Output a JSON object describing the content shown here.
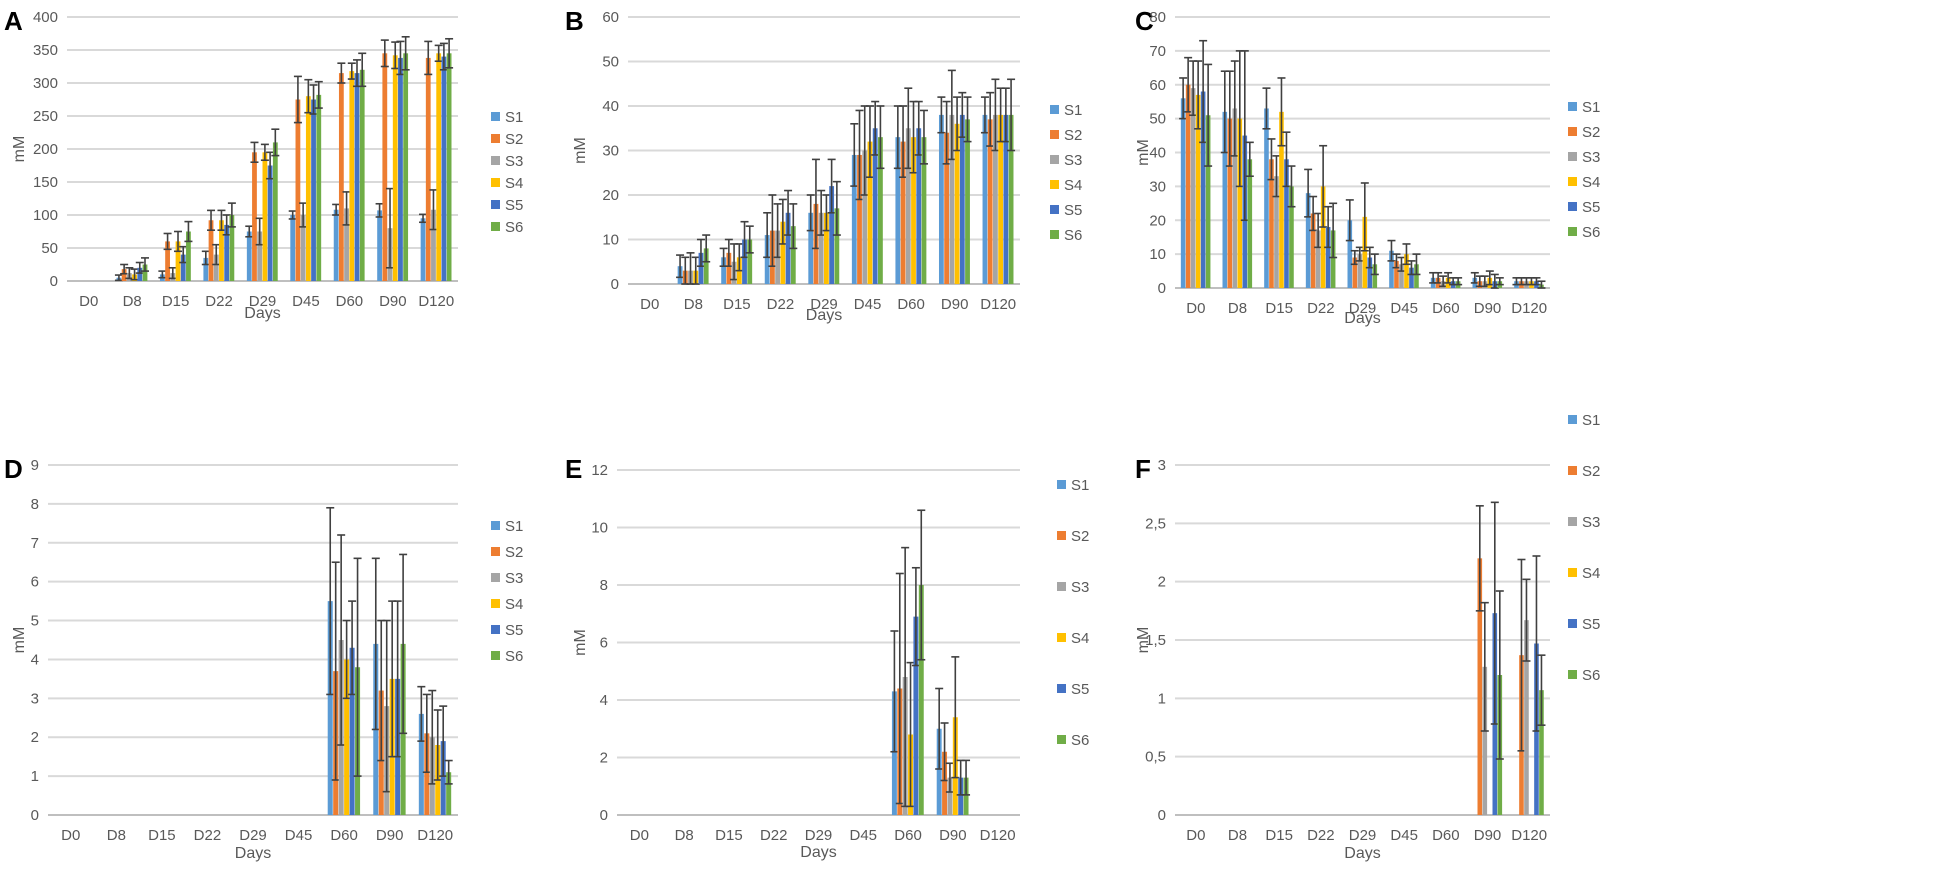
{
  "series_names": [
    "S1",
    "S2",
    "S3",
    "S4",
    "S5",
    "S6"
  ],
  "colors": {
    "S1": "#5b9bd5",
    "S2": "#ed7d31",
    "S3": "#a5a5a5",
    "S4": "#ffc000",
    "S5": "#4472c4",
    "S6": "#70ad47",
    "grid": "#d9d9d9",
    "axis": "#bfbfbf",
    "errorbar": "#404040"
  },
  "chart_data": [
    {
      "panel": "A",
      "type": "bar",
      "xlabel": "Days",
      "ylabel": "mM",
      "ylim": [
        0,
        400
      ],
      "yticks": [
        "0",
        "50",
        "100",
        "150",
        "200",
        "250",
        "300",
        "350",
        "400"
      ],
      "categories": [
        "D0",
        "D8",
        "D15",
        "D22",
        "D29",
        "D45",
        "D60",
        "D90",
        "D120"
      ],
      "series": [
        {
          "name": "S1",
          "values": [
            0,
            5,
            10,
            35,
            75,
            100,
            108,
            107,
            95
          ],
          "errors": [
            0,
            4,
            5,
            10,
            8,
            6,
            8,
            10,
            6
          ]
        },
        {
          "name": "S2",
          "values": [
            0,
            18,
            60,
            92,
            195,
            275,
            315,
            345,
            338
          ],
          "errors": [
            0,
            7,
            12,
            15,
            15,
            35,
            15,
            20,
            25
          ]
        },
        {
          "name": "S3",
          "values": [
            0,
            12,
            12,
            40,
            75,
            100,
            110,
            80,
            108
          ],
          "errors": [
            0,
            8,
            8,
            15,
            20,
            18,
            25,
            60,
            30
          ]
        },
        {
          "name": "S4",
          "values": [
            0,
            10,
            60,
            92,
            195,
            280,
            318,
            342,
            345
          ],
          "errors": [
            0,
            8,
            15,
            15,
            12,
            25,
            12,
            20,
            12
          ]
        },
        {
          "name": "S5",
          "values": [
            0,
            20,
            40,
            85,
            175,
            275,
            315,
            338,
            340
          ],
          "errors": [
            0,
            8,
            12,
            15,
            20,
            22,
            20,
            25,
            20
          ]
        },
        {
          "name": "S6",
          "values": [
            0,
            25,
            75,
            100,
            210,
            282,
            320,
            345,
            345
          ],
          "errors": [
            0,
            10,
            15,
            18,
            20,
            20,
            25,
            25,
            22
          ]
        }
      ]
    },
    {
      "panel": "B",
      "type": "bar",
      "xlabel": "Days",
      "ylabel": "mM",
      "ylim": [
        0,
        60
      ],
      "yticks": [
        "0",
        "10",
        "20",
        "30",
        "40",
        "50",
        "60"
      ],
      "categories": [
        "D0",
        "D8",
        "D15",
        "D22",
        "D29",
        "D45",
        "D60",
        "D90",
        "D120"
      ],
      "series": [
        {
          "name": "S1",
          "values": [
            0,
            4,
            6,
            11,
            16,
            29,
            33,
            38,
            38
          ],
          "errors": [
            0,
            2.5,
            2,
            5,
            4,
            7,
            7,
            4,
            4
          ]
        },
        {
          "name": "S2",
          "values": [
            0,
            3,
            7,
            12,
            18,
            29,
            32,
            34,
            37
          ],
          "errors": [
            0,
            3,
            3,
            8,
            10,
            10,
            8,
            7,
            6
          ]
        },
        {
          "name": "S3",
          "values": [
            0,
            3,
            5,
            12,
            16,
            30,
            35,
            38,
            38
          ],
          "errors": [
            0,
            4,
            4,
            6,
            5,
            10,
            9,
            10,
            8
          ]
        },
        {
          "name": "S4",
          "values": [
            0,
            3,
            6,
            14,
            16,
            32,
            33,
            36,
            38
          ],
          "errors": [
            0,
            3,
            3,
            5,
            4,
            8,
            8,
            6,
            6
          ]
        },
        {
          "name": "S5",
          "values": [
            0,
            7,
            10,
            16,
            22,
            35,
            35,
            38,
            38
          ],
          "errors": [
            0,
            3,
            4,
            5,
            6,
            6,
            6,
            5,
            6
          ]
        },
        {
          "name": "S6",
          "values": [
            0,
            8,
            10,
            13,
            17,
            33,
            33,
            37,
            38
          ],
          "errors": [
            0,
            3,
            3,
            5,
            6,
            7,
            6,
            5,
            8
          ]
        }
      ]
    },
    {
      "panel": "C",
      "type": "bar",
      "xlabel": "Days",
      "ylabel": "mM",
      "ylim": [
        0,
        80
      ],
      "yticks": [
        "0",
        "10",
        "20",
        "30",
        "40",
        "50",
        "60",
        "70",
        "80"
      ],
      "categories": [
        "D0",
        "D8",
        "D15",
        "D22",
        "D29",
        "D45",
        "D60",
        "D90",
        "D120"
      ],
      "series": [
        {
          "name": "S1",
          "values": [
            56,
            52,
            53,
            28,
            20,
            11,
            3,
            3,
            2
          ],
          "errors": [
            6,
            12,
            6,
            7,
            6,
            3,
            1.5,
            1.5,
            1
          ]
        },
        {
          "name": "S2",
          "values": [
            60,
            50,
            38,
            22,
            9,
            8,
            3,
            2,
            2
          ],
          "errors": [
            8,
            14,
            6,
            5,
            2,
            2,
            1.5,
            1.5,
            1
          ]
        },
        {
          "name": "S3",
          "values": [
            59,
            53,
            33,
            17,
            10,
            7,
            2,
            2,
            2
          ],
          "errors": [
            8,
            14,
            6,
            5,
            2,
            2,
            1.5,
            1.5,
            1
          ]
        },
        {
          "name": "S4",
          "values": [
            57,
            50,
            52,
            30,
            21,
            10,
            3,
            3,
            2
          ],
          "errors": [
            10,
            20,
            10,
            12,
            10,
            3,
            1.5,
            2,
            1
          ]
        },
        {
          "name": "S5",
          "values": [
            58,
            45,
            38,
            18,
            9,
            6,
            2,
            2,
            2
          ],
          "errors": [
            15,
            25,
            8,
            6,
            3,
            2,
            1,
            2,
            1
          ]
        },
        {
          "name": "S6",
          "values": [
            51,
            38,
            30,
            17,
            7,
            7,
            2,
            2,
            1
          ],
          "errors": [
            15,
            5,
            6,
            8,
            3,
            3,
            1,
            1,
            1
          ]
        }
      ]
    },
    {
      "panel": "D",
      "type": "bar",
      "xlabel": "Days",
      "ylabel": "mM",
      "ylim": [
        0,
        9
      ],
      "yticks": [
        "0",
        "1",
        "2",
        "3",
        "4",
        "5",
        "6",
        "7",
        "8",
        "9"
      ],
      "categories": [
        "D0",
        "D8",
        "D15",
        "D22",
        "D29",
        "D45",
        "D60",
        "D90",
        "D120"
      ],
      "series": [
        {
          "name": "S1",
          "values": [
            0,
            0,
            0,
            0,
            0,
            0,
            5.5,
            4.4,
            2.6
          ],
          "errors": [
            0,
            0,
            0,
            0,
            0,
            0,
            2.4,
            2.2,
            0.7
          ]
        },
        {
          "name": "S2",
          "values": [
            0,
            0,
            0,
            0,
            0,
            0,
            3.7,
            3.2,
            2.1
          ],
          "errors": [
            0,
            0,
            0,
            0,
            0,
            0,
            2.8,
            1.8,
            1.0
          ]
        },
        {
          "name": "S3",
          "values": [
            0,
            0,
            0,
            0,
            0,
            0,
            4.5,
            2.8,
            2.0
          ],
          "errors": [
            0,
            0,
            0,
            0,
            0,
            0,
            2.7,
            2.2,
            1.2
          ]
        },
        {
          "name": "S4",
          "values": [
            0,
            0,
            0,
            0,
            0,
            0,
            4.0,
            3.5,
            1.8
          ],
          "errors": [
            0,
            0,
            0,
            0,
            0,
            0,
            1.0,
            2.0,
            0.9
          ]
        },
        {
          "name": "S5",
          "values": [
            0,
            0,
            0,
            0,
            0,
            0,
            4.3,
            3.5,
            1.9
          ],
          "errors": [
            0,
            0,
            0,
            0,
            0,
            0,
            1.2,
            2.0,
            0.9
          ]
        },
        {
          "name": "S6",
          "values": [
            0,
            0,
            0,
            0,
            0,
            0,
            3.8,
            4.4,
            1.1
          ],
          "errors": [
            0,
            0,
            0,
            0,
            0,
            0,
            2.8,
            2.3,
            0.3
          ]
        }
      ]
    },
    {
      "panel": "E",
      "type": "bar",
      "xlabel": "Days",
      "ylabel": "mM",
      "ylim": [
        0,
        12
      ],
      "yticks": [
        "0",
        "2",
        "4",
        "6",
        "8",
        "10",
        "12"
      ],
      "categories": [
        "D0",
        "D8",
        "D15",
        "D22",
        "D29",
        "D45",
        "D60",
        "D90",
        "D120"
      ],
      "series": [
        {
          "name": "S1",
          "values": [
            0,
            0,
            0,
            0,
            0,
            0,
            4.3,
            3.0,
            0
          ],
          "errors": [
            0,
            0,
            0,
            0,
            0,
            0,
            2.1,
            1.4,
            0
          ]
        },
        {
          "name": "S2",
          "values": [
            0,
            0,
            0,
            0,
            0,
            0,
            4.4,
            2.2,
            0
          ],
          "errors": [
            0,
            0,
            0,
            0,
            0,
            0,
            4.0,
            1.0,
            0
          ]
        },
        {
          "name": "S3",
          "values": [
            0,
            0,
            0,
            0,
            0,
            0,
            4.8,
            1.3,
            0
          ],
          "errors": [
            0,
            0,
            0,
            0,
            0,
            0,
            4.5,
            0.5,
            0
          ]
        },
        {
          "name": "S4",
          "values": [
            0,
            0,
            0,
            0,
            0,
            0,
            2.8,
            3.4,
            0
          ],
          "errors": [
            0,
            0,
            0,
            0,
            0,
            0,
            2.5,
            2.1,
            0
          ]
        },
        {
          "name": "S5",
          "values": [
            0,
            0,
            0,
            0,
            0,
            0,
            6.9,
            1.3,
            0
          ],
          "errors": [
            0,
            0,
            0,
            0,
            0,
            0,
            1.7,
            0.6,
            0
          ]
        },
        {
          "name": "S6",
          "values": [
            0,
            0,
            0,
            0,
            0,
            0,
            8.0,
            1.3,
            0
          ],
          "errors": [
            0,
            0,
            0,
            0,
            0,
            0,
            2.6,
            0.6,
            0
          ]
        }
      ]
    },
    {
      "panel": "F",
      "type": "bar",
      "xlabel": "Days",
      "ylabel": "mM",
      "ylim": [
        0,
        3
      ],
      "yticks": [
        "0",
        "0,5",
        "1",
        "1,5",
        "2",
        "2,5",
        "3"
      ],
      "categories": [
        "D0",
        "D8",
        "D15",
        "D22",
        "D29",
        "D45",
        "D60",
        "D90",
        "D120"
      ],
      "series": [
        {
          "name": "S1",
          "values": [
            0,
            0,
            0,
            0,
            0,
            0,
            0,
            0,
            0
          ],
          "errors": [
            0,
            0,
            0,
            0,
            0,
            0,
            0,
            0,
            0
          ]
        },
        {
          "name": "S2",
          "values": [
            0,
            0,
            0,
            0,
            0,
            0,
            0,
            2.2,
            1.37
          ],
          "errors": [
            0,
            0,
            0,
            0,
            0,
            0,
            0,
            0.45,
            0.82
          ]
        },
        {
          "name": "S3",
          "values": [
            0,
            0,
            0,
            0,
            0,
            0,
            0,
            1.27,
            1.67
          ],
          "errors": [
            0,
            0,
            0,
            0,
            0,
            0,
            0,
            0.55,
            0.35
          ]
        },
        {
          "name": "S4",
          "values": [
            0,
            0,
            0,
            0,
            0,
            0,
            0,
            0,
            0
          ],
          "errors": [
            0,
            0,
            0,
            0,
            0,
            0,
            0,
            0,
            0
          ]
        },
        {
          "name": "S5",
          "values": [
            0,
            0,
            0,
            0,
            0,
            0,
            0,
            1.73,
            1.47
          ],
          "errors": [
            0,
            0,
            0,
            0,
            0,
            0,
            0,
            0.95,
            0.75
          ]
        },
        {
          "name": "S6",
          "values": [
            0,
            0,
            0,
            0,
            0,
            0,
            0,
            1.2,
            1.07
          ],
          "errors": [
            0,
            0,
            0,
            0,
            0,
            0,
            0,
            0.72,
            0.3
          ]
        }
      ]
    }
  ]
}
